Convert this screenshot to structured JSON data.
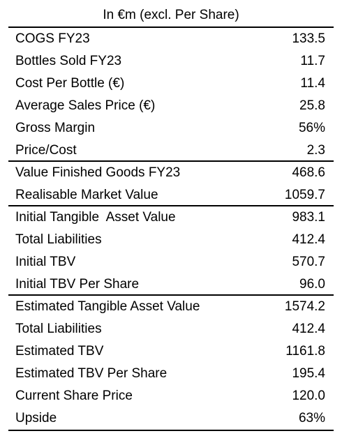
{
  "header": {
    "title": "In €m (excl. Per Share)"
  },
  "rows": [
    {
      "label": "COGS FY23",
      "value": "133.5"
    },
    {
      "label": "Bottles Sold FY23",
      "value": "11.7"
    },
    {
      "label": "Cost Per Bottle (€)",
      "value": "11.4"
    },
    {
      "label": "Average Sales Price (€)",
      "value": "25.8"
    },
    {
      "label": "Gross Margin",
      "value": "56%"
    },
    {
      "label": "Price/Cost",
      "value": "2.3"
    },
    {
      "label": "Value Finished Goods FY23",
      "value": "468.6"
    },
    {
      "label": "Realisable Market Value",
      "value": "1059.7"
    },
    {
      "label": "Initial Tangible  Asset Value",
      "value": "983.1"
    },
    {
      "label": "Total Liabilities",
      "value": "412.4"
    },
    {
      "label": "Initial TBV",
      "value": "570.7"
    },
    {
      "label": "Initial TBV Per Share",
      "value": "96.0"
    },
    {
      "label": "Estimated Tangible Asset Value",
      "value": "1574.2"
    },
    {
      "label": "Total Liabilities",
      "value": "412.4"
    },
    {
      "label": "Estimated TBV",
      "value": "1161.8"
    },
    {
      "label": "Estimated TBV Per Share",
      "value": "195.4"
    },
    {
      "label": "Current Share Price",
      "value": "120.0"
    },
    {
      "label": "Upside",
      "value": "63%"
    }
  ]
}
